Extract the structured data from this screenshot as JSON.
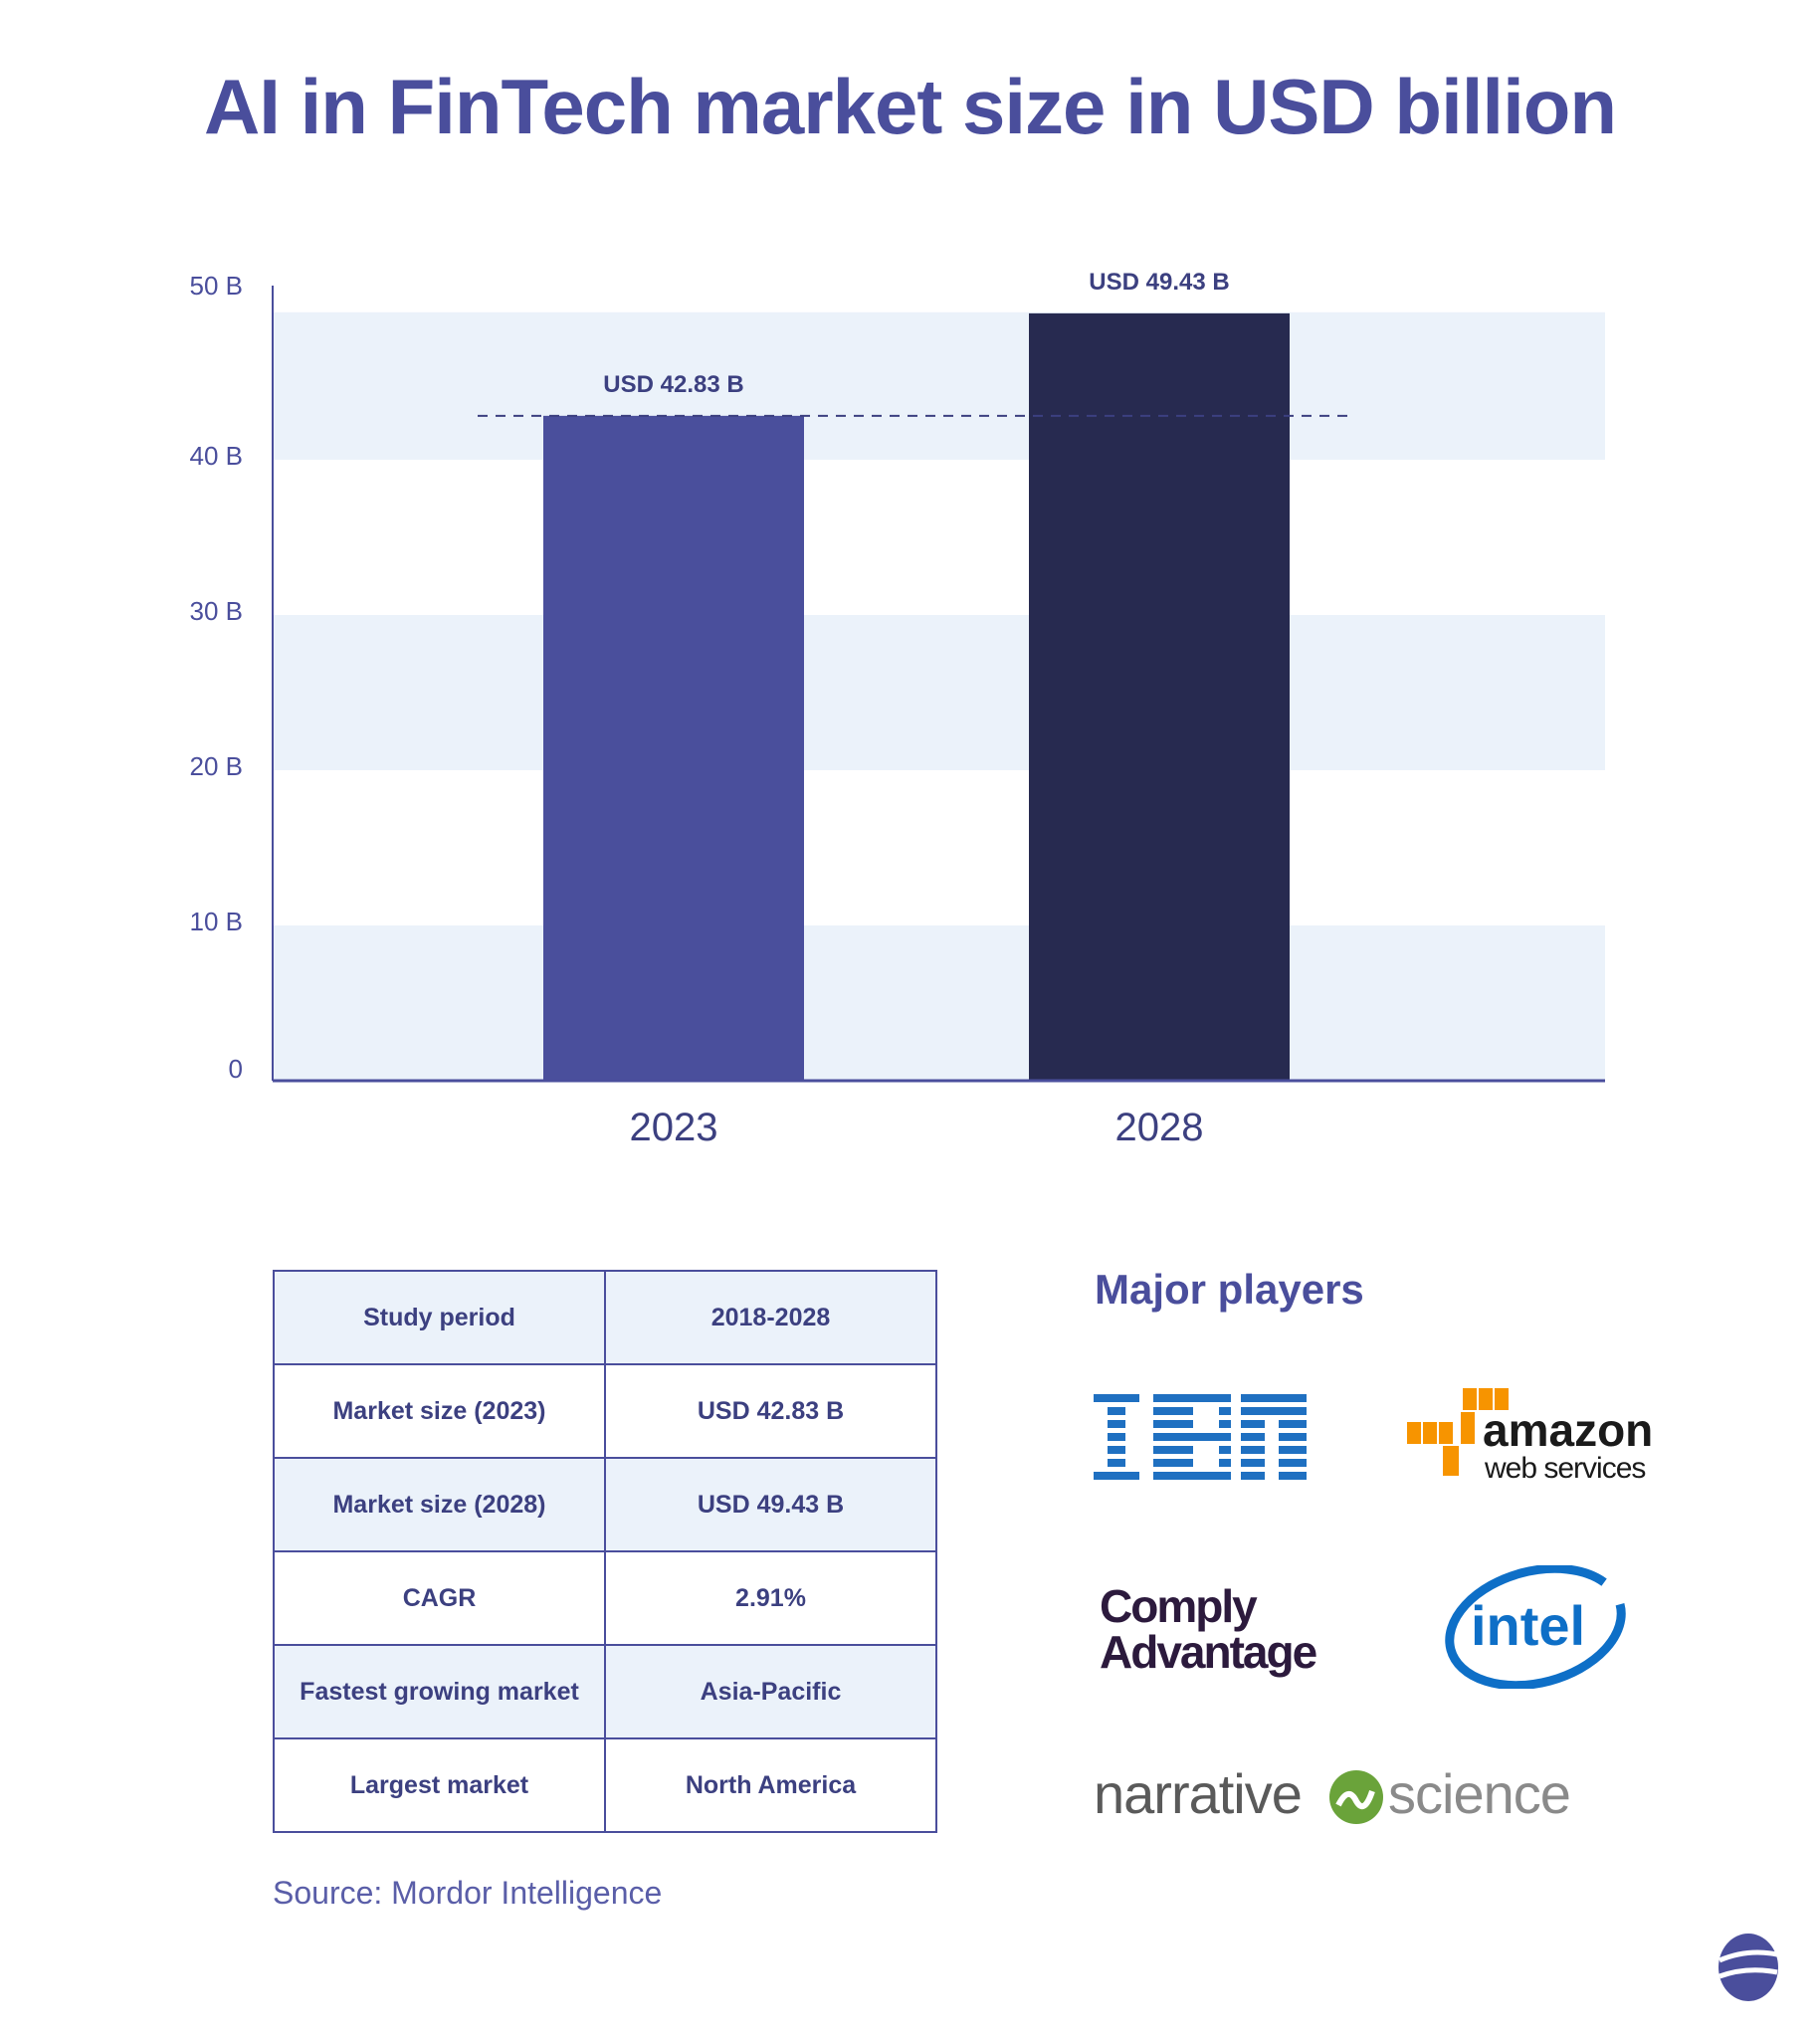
{
  "title": "AI in FinTech market size in USD billion",
  "chart_data": {
    "type": "bar",
    "title": "AI in FinTech market size in USD billion",
    "categories": [
      "2023",
      "2028"
    ],
    "values": [
      42.83,
      49.43
    ],
    "data_labels": [
      "USD 42.83 B",
      "USD 49.43 B"
    ],
    "ylim": [
      0,
      50
    ],
    "yticks": [
      0,
      10,
      20,
      30,
      40,
      50
    ],
    "ytick_labels": [
      "0",
      "10 B",
      "20 B",
      "30 B",
      "40 B",
      "50 B"
    ],
    "xlabel": "",
    "ylabel": "",
    "grid": "alternating horizontal bands",
    "reference_line": {
      "value": 42.83,
      "style": "dashed"
    },
    "colors": [
      "#4a4f9c",
      "#272a50"
    ],
    "band_color": "#ebf2fa"
  },
  "table": {
    "rows": [
      [
        "Study period",
        "2018-2028"
      ],
      [
        "Market size (2023)",
        "USD 42.83 B"
      ],
      [
        "Market size (2028)",
        "USD 49.43 B"
      ],
      [
        "CAGR",
        "2.91%"
      ],
      [
        "Fastest growing market",
        "Asia-Pacific"
      ],
      [
        "Largest market",
        "North America"
      ]
    ]
  },
  "source": "Source: Mordor Intelligence",
  "players": {
    "heading": "Major players",
    "logos": [
      "IBM",
      "amazon web services",
      "Comply Advantage",
      "intel",
      "narrative science"
    ]
  }
}
